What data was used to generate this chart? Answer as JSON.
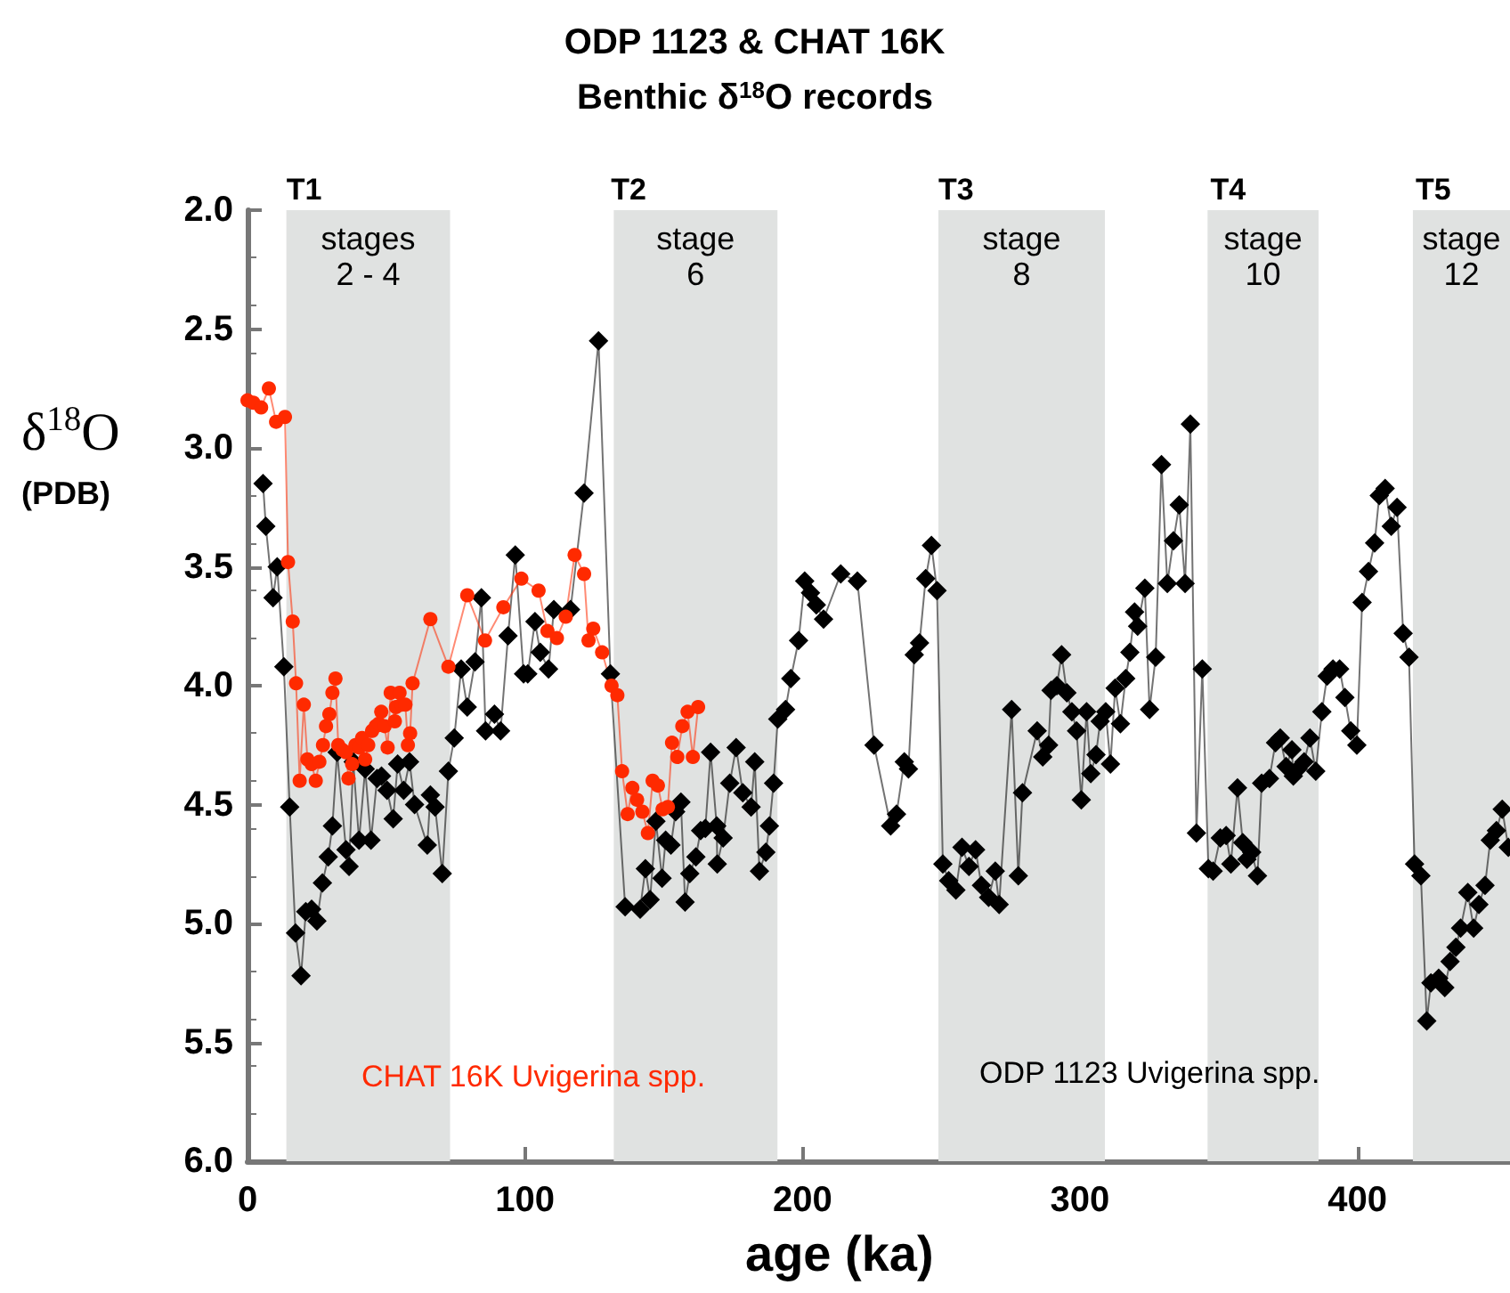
{
  "chart_data": {
    "type": "line",
    "title": "ODP 1123 & CHAT 16K",
    "subtitle": "Benthic δ$^{18}$O records",
    "xlabel": "age (ka)",
    "ylabel": "δ$^{18}$O (PDB)",
    "xlim": [
      0,
      455
    ],
    "xticks": [
      0,
      100,
      200,
      300,
      400
    ],
    "ylim": [
      6.0,
      2.0
    ],
    "yticks": [
      {
        "value": 2,
        "label": "2.0"
      },
      {
        "value": 2.5,
        "label": "2.5"
      },
      {
        "value": 3,
        "label": "3.0"
      },
      {
        "value": 3.5,
        "label": "3.5"
      },
      {
        "value": 4,
        "label": "4.0"
      },
      {
        "value": 4.5,
        "label": "4.5"
      },
      {
        "value": 5,
        "label": "5.0"
      },
      {
        "value": 5.5,
        "label": "5.5"
      },
      {
        "value": 6,
        "label": "6.0"
      }
    ],
    "bands": [
      {
        "axis": "x",
        "from": 14,
        "to": 73,
        "label": "stages\n2 - 4",
        "color": "#e0e2e1"
      },
      {
        "axis": "x",
        "from": 132,
        "to": 191,
        "label": "stage\n6",
        "color": "#e0e2e1"
      },
      {
        "axis": "x",
        "from": 249,
        "to": 309,
        "label": "stage\n8",
        "color": "#e0e2e1"
      },
      {
        "axis": "x",
        "from": 346,
        "to": 386,
        "label": "stage\n10",
        "color": "#e0e2e1"
      },
      {
        "axis": "x",
        "from": 420,
        "to": 455,
        "label": "stage\n12",
        "color": "#e0e2e1"
      }
    ],
    "annotations": [
      {
        "text": "T1",
        "x": 14,
        "y": 2.0
      },
      {
        "text": "T2",
        "x": 131,
        "y": 2.0
      },
      {
        "text": "T3",
        "x": 249,
        "y": 2.0
      },
      {
        "text": "T4",
        "x": 347,
        "y": 2.0
      },
      {
        "text": "T5",
        "x": 421,
        "y": 2.0
      }
    ],
    "series": [
      {
        "name": "ODP 1123 Uvigerina spp.",
        "color": "#000000",
        "marker": "diamond",
        "x": [
          5.6,
          6.6,
          9.2,
          10.7,
          13.1,
          15.2,
          17.3,
          19.3,
          21.0,
          23.1,
          25.0,
          27.0,
          29.1,
          30.6,
          32.3,
          35.5,
          36.6,
          38.1,
          40.2,
          42.4,
          44.5,
          46.7,
          48.3,
          50.3,
          52.5,
          54.1,
          56.3,
          58.4,
          60.2,
          64.8,
          65.9,
          67.6,
          70.2,
          72.4,
          74.5,
          77.0,
          79.2,
          82.0,
          84.3,
          85.8,
          89.0,
          91.2,
          93.9,
          96.5,
          99.5,
          101.0,
          103.6,
          105.5,
          108.5,
          110.4,
          116.4,
          121.3,
          126.5,
          130.8,
          136.1,
          141.5,
          143.4,
          145.1,
          147.2,
          149.4,
          150.7,
          152.6,
          154.3,
          156.2,
          157.7,
          159.4,
          161.6,
          163.3,
          165.0,
          166.9,
          169.1,
          169.3,
          171.4,
          173.8,
          176.1,
          178.5,
          181.5,
          182.8,
          184.5,
          186.8,
          188.1,
          189.6,
          191.1,
          193.9,
          195.8,
          198.6,
          200.8,
          202.9,
          205.0,
          207.6,
          213.8,
          219.8,
          225.8,
          231.8,
          233.9,
          236.7,
          238.2,
          240.3,
          242.2,
          244.4,
          246.5,
          248.5,
          250.6,
          252.7,
          255.3,
          257.5,
          260.0,
          262.4,
          264.5,
          267.1,
          269.5,
          270.9,
          275.4,
          277.8,
          279.3,
          284.6,
          286.6,
          288.7,
          289.6,
          291.7,
          293.4,
          295.3,
          297.1,
          298.8,
          300.5,
          302.4,
          303.9,
          305.8,
          307.3,
          309.3,
          311.0,
          312.7,
          314.6,
          316.5,
          318.0,
          319.7,
          320.8,
          323.4,
          325.1,
          327.3,
          329.4,
          331.5,
          333.7,
          335.8,
          337.9,
          339.8,
          342.0,
          344.1,
          346.3,
          348.0,
          350.6,
          352.7,
          354.4,
          356.8,
          358.7,
          360.2,
          361.9,
          364.0,
          365.5,
          368.3,
          370.5,
          372.2,
          374.3,
          376.4,
          376.9,
          378.6,
          380.8,
          382.9,
          385.0,
          387.2,
          389.1,
          391.2,
          393.6,
          395.5,
          397.6,
          399.8,
          401.7,
          404.0,
          406.2,
          407.9,
          410.0,
          412.2,
          414.3,
          416.5,
          418.6,
          420.6,
          422.9,
          425.0,
          426.5,
          429.3,
          431.5,
          433.4,
          435.5,
          437.2,
          439.8,
          441.9,
          443.8,
          446.0,
          447.9,
          450.1,
          452.2,
          454.4
        ],
        "values": [
          3.15,
          3.33,
          3.63,
          3.5,
          3.92,
          4.51,
          5.04,
          5.22,
          4.95,
          4.94,
          4.99,
          4.83,
          4.72,
          4.59,
          4.28,
          4.69,
          4.76,
          4.32,
          4.65,
          4.35,
          4.65,
          4.39,
          4.38,
          4.44,
          4.56,
          4.33,
          4.44,
          4.32,
          4.5,
          4.67,
          4.46,
          4.51,
          4.79,
          4.36,
          4.22,
          3.93,
          4.09,
          3.9,
          3.63,
          4.19,
          4.12,
          4.19,
          3.79,
          3.45,
          3.95,
          3.95,
          3.73,
          3.86,
          3.93,
          3.68,
          3.68,
          3.19,
          2.55,
          3.95,
          4.93,
          4.94,
          4.77,
          4.9,
          4.57,
          4.81,
          4.65,
          4.67,
          4.53,
          4.49,
          4.91,
          4.79,
          4.72,
          4.61,
          4.6,
          4.28,
          4.59,
          4.75,
          4.64,
          4.41,
          4.26,
          4.45,
          4.51,
          4.32,
          4.78,
          4.7,
          4.59,
          4.41,
          4.14,
          4.1,
          3.97,
          3.81,
          3.56,
          3.61,
          3.66,
          3.72,
          3.53,
          3.56,
          4.25,
          4.59,
          4.54,
          4.32,
          4.35,
          3.87,
          3.82,
          3.55,
          3.41,
          3.6,
          4.75,
          4.82,
          4.86,
          4.68,
          4.76,
          4.69,
          4.84,
          4.89,
          4.78,
          4.92,
          4.1,
          4.8,
          4.45,
          4.19,
          4.3,
          4.25,
          4.02,
          4.0,
          3.87,
          4.03,
          4.11,
          4.19,
          4.48,
          4.11,
          4.37,
          4.29,
          4.15,
          4.11,
          4.33,
          4.01,
          4.16,
          3.97,
          3.86,
          3.69,
          3.75,
          3.59,
          4.1,
          3.88,
          3.07,
          3.57,
          3.39,
          3.24,
          3.57,
          2.9,
          4.62,
          3.93,
          4.77,
          4.78,
          4.64,
          4.63,
          4.75,
          4.43,
          4.66,
          4.73,
          4.7,
          4.8,
          4.41,
          4.39,
          4.24,
          4.22,
          4.34,
          4.27,
          4.38,
          4.35,
          4.32,
          4.22,
          4.36,
          4.11,
          3.96,
          3.93,
          3.93,
          4.05,
          4.19,
          4.25,
          3.65,
          3.52,
          3.4,
          3.2,
          3.17,
          3.33,
          3.25,
          3.78,
          3.88,
          4.75,
          4.8,
          5.41,
          5.25,
          5.23,
          5.27,
          5.16,
          5.1,
          5.02,
          4.87,
          5.02,
          4.92,
          4.84,
          4.65,
          4.61,
          4.52,
          4.68
        ]
      },
      {
        "name": "CHAT 16K Uvigerina spp.",
        "color": "#ff2a00",
        "marker": "circle",
        "x": [
          0,
          2.1,
          4.9,
          7.7,
          10.3,
          13.5,
          14.6,
          16.3,
          17.5,
          18.8,
          20.3,
          21.6,
          23.1,
          24.6,
          25.9,
          27.2,
          28.3,
          29.5,
          30.6,
          31.7,
          32.7,
          34.2,
          35.5,
          36.4,
          37.7,
          38.9,
          40.2,
          41.3,
          42.4,
          43.5,
          44.9,
          46.2,
          47.3,
          48.2,
          49.4,
          50.5,
          51.6,
          53.1,
          53.5,
          54.8,
          55.6,
          56.9,
          57.8,
          58.6,
          59.5,
          65.9,
          72.4,
          79.2,
          85.6,
          92.2,
          98.7,
          104.9,
          108.1,
          111.5,
          114.7,
          117.9,
          121.3,
          122.9,
          124.6,
          127.8,
          131.2,
          133.3,
          135.0,
          137.0,
          138.7,
          140.4,
          142.3,
          144.3,
          146.0,
          147.9,
          149.6,
          151.5,
          153.0,
          154.9,
          156.7,
          158.6,
          160.5,
          162.4
        ],
        "values": [
          2.8,
          2.81,
          2.83,
          2.75,
          2.89,
          2.87,
          3.48,
          3.73,
          3.99,
          4.4,
          4.08,
          4.31,
          4.33,
          4.4,
          4.32,
          4.25,
          4.17,
          4.12,
          4.03,
          3.97,
          4.25,
          4.27,
          4.28,
          4.39,
          4.33,
          4.25,
          4.26,
          4.22,
          4.31,
          4.25,
          4.19,
          4.17,
          4.16,
          4.11,
          4.17,
          4.26,
          4.03,
          4.15,
          4.09,
          4.03,
          4.08,
          4.08,
          4.25,
          4.2,
          3.99,
          3.72,
          3.92,
          3.62,
          3.81,
          3.67,
          3.55,
          3.6,
          3.77,
          3.8,
          3.71,
          3.45,
          3.53,
          3.81,
          3.76,
          3.86,
          4.0,
          4.04,
          4.36,
          4.54,
          4.43,
          4.48,
          4.53,
          4.62,
          4.4,
          4.42,
          4.52,
          4.51,
          4.24,
          4.3,
          4.17,
          4.11,
          4.3,
          4.09
        ]
      }
    ]
  }
}
